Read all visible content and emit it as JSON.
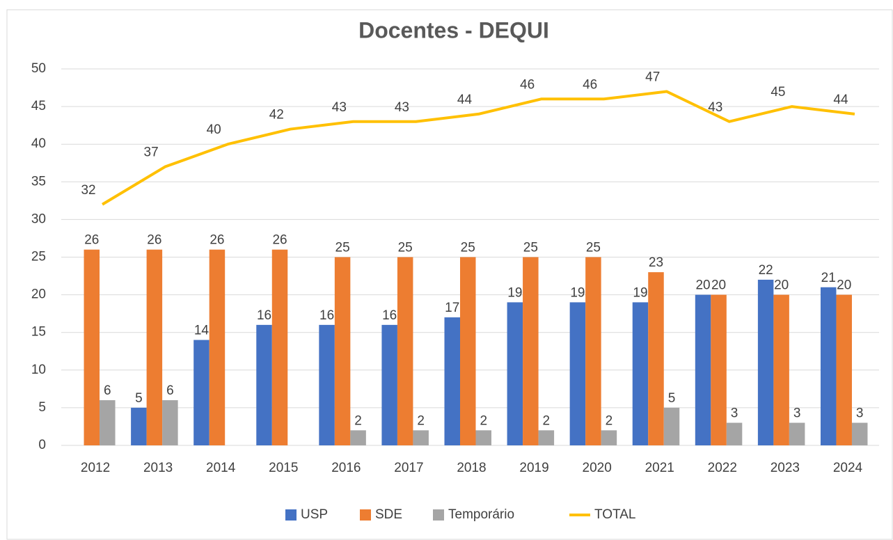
{
  "chart_data": {
    "type": "bar",
    "title": "Docentes - DEQUI",
    "categories": [
      "2012",
      "2013",
      "2014",
      "2015",
      "2016",
      "2017",
      "2018",
      "2019",
      "2020",
      "2021",
      "2022",
      "2023",
      "2024"
    ],
    "series": [
      {
        "name": "USP",
        "type": "bar",
        "color": "#4472c4",
        "values": [
          null,
          5,
          14,
          16,
          16,
          16,
          17,
          19,
          19,
          19,
          20,
          22,
          21
        ]
      },
      {
        "name": "SDE",
        "type": "bar",
        "color": "#ed7d31",
        "values": [
          26,
          26,
          26,
          26,
          25,
          25,
          25,
          25,
          25,
          23,
          20,
          20,
          20
        ]
      },
      {
        "name": "Temporário",
        "type": "bar",
        "color": "#a5a5a5",
        "values": [
          6,
          6,
          null,
          null,
          2,
          2,
          2,
          2,
          2,
          5,
          3,
          3,
          3
        ]
      },
      {
        "name": "TOTAL",
        "type": "line",
        "color": "#ffc000",
        "values": [
          32,
          37,
          40,
          42,
          43,
          43,
          44,
          46,
          46,
          47,
          43,
          45,
          44
        ]
      }
    ],
    "ylim": [
      0,
      50
    ],
    "yticks": [
      0,
      5,
      10,
      15,
      20,
      25,
      30,
      35,
      40,
      45,
      50
    ],
    "grid": true,
    "legend": "bottom"
  }
}
